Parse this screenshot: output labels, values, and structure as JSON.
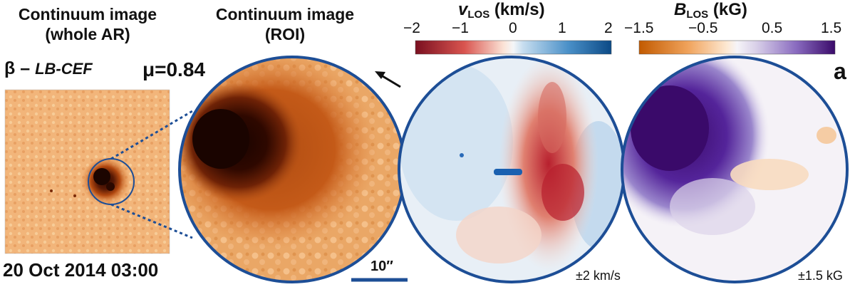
{
  "titles": {
    "whole_line1": "Continuum image",
    "whole_line2": "(whole AR)",
    "roi_line1": "Continuum image",
    "roi_line2": "(ROI)"
  },
  "classification": {
    "prefix": "β – ",
    "italic": "LB-CEF"
  },
  "mu_text": "μ=0.84",
  "date_text": "20 Oct 2014 03:00",
  "vlos": {
    "symbol": "v",
    "sub": "LOS",
    "unit": " (km/s)",
    "ticks": [
      "−2",
      "−1",
      "0",
      "1",
      "2"
    ],
    "range_text": "±2 km/s",
    "colors": [
      "#7a1020",
      "#d9544f",
      "#fbe3d6",
      "#f4f6f8",
      "#c6ddef",
      "#4a90c8",
      "#0c4a86"
    ]
  },
  "blos": {
    "symbol": "B",
    "sub": "LOS",
    "unit": " (kG)",
    "ticks": [
      "−1.5",
      "−0.5",
      "0.5",
      "1.5"
    ],
    "range_text": "±1.5 kG",
    "colors": [
      "#c25a00",
      "#f0a35c",
      "#fde9d4",
      "#f6f4f8",
      "#d8cfe8",
      "#8a6cc0",
      "#3a0a6a"
    ]
  },
  "panel_label": "a",
  "scale_bar_text": "10″",
  "colors": {
    "circle_border": "#1d4e96",
    "dotted_lines": "#1d4e96",
    "continuum_bg": "#f2b57a"
  },
  "icons": [
    "north-arrow-icon"
  ]
}
